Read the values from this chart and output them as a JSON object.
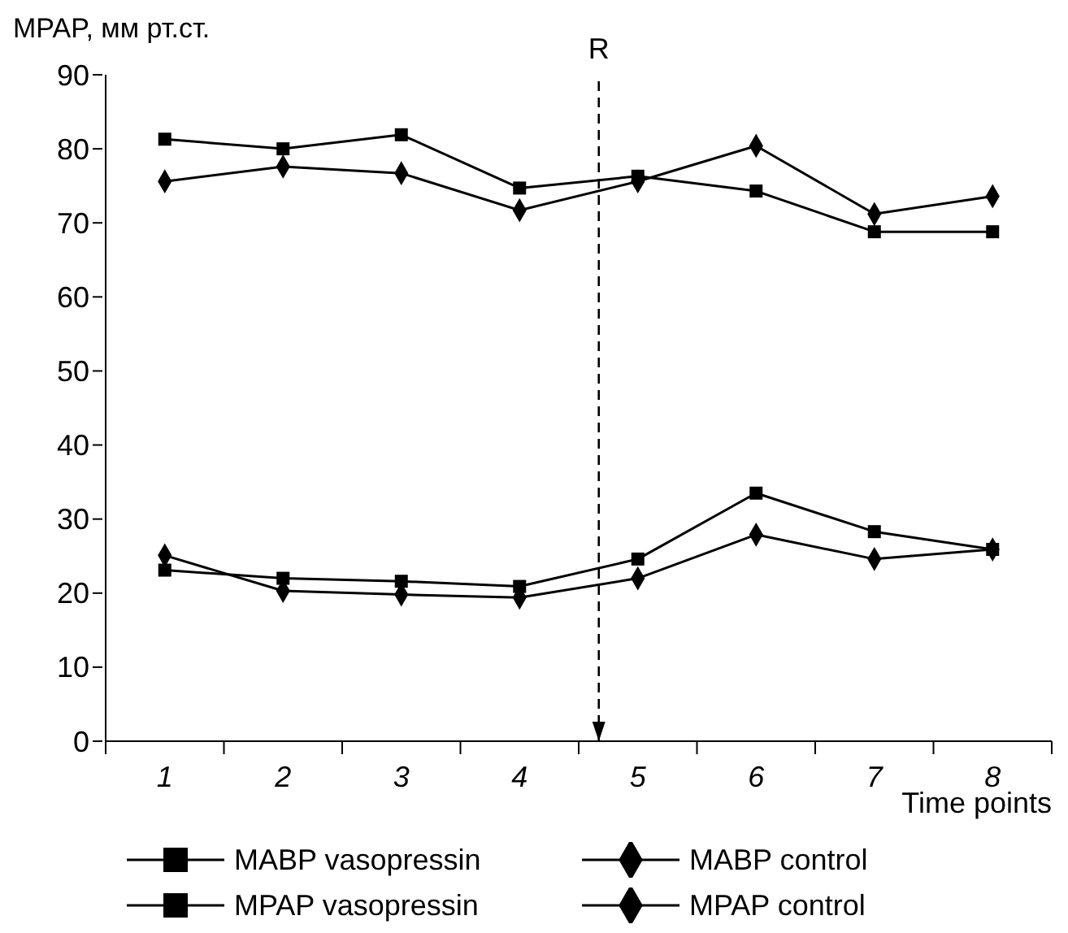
{
  "chart_data": {
    "type": "line",
    "ylabel": "MPAP, мм рт.ст.",
    "xlabel": "Time points",
    "x": [
      1,
      2,
      3,
      4,
      5,
      6,
      7,
      8
    ],
    "xlim": [
      0.5,
      8.5
    ],
    "xticks": [
      {
        "value": 0.5,
        "label": null
      },
      {
        "value": 1,
        "label": "1"
      },
      {
        "value": 1.5,
        "label": null
      },
      {
        "value": 2,
        "label": "2"
      },
      {
        "value": 2.5,
        "label": null
      },
      {
        "value": 3,
        "label": "3"
      },
      {
        "value": 3.5,
        "label": null
      },
      {
        "value": 4,
        "label": "4"
      },
      {
        "value": 4.5,
        "label": null
      },
      {
        "value": 5,
        "label": "5"
      },
      {
        "value": 5.5,
        "label": null
      },
      {
        "value": 6,
        "label": "6"
      },
      {
        "value": 6.5,
        "label": null
      },
      {
        "value": 7,
        "label": "7"
      },
      {
        "value": 7.5,
        "label": null
      },
      {
        "value": 8,
        "label": "8"
      },
      {
        "value": 8.5,
        "label": null
      }
    ],
    "ylim": [
      0,
      90
    ],
    "yticks": [
      0,
      10,
      20,
      30,
      40,
      50,
      60,
      70,
      80,
      90
    ],
    "grid": false,
    "legend": "bottom",
    "line_style": "solid",
    "ref_lines": [
      {
        "axis": "x",
        "value": 4.67,
        "label": "R",
        "line_style": "dashed",
        "color": "#000000"
      }
    ],
    "series": [
      {
        "name": "MABP vasopressin",
        "color": "#000000",
        "marker": "square",
        "values": [
          81.3,
          80.0,
          81.9,
          74.7,
          76.3,
          74.3,
          68.8,
          68.8
        ]
      },
      {
        "name": "MABP control",
        "color": "#000000",
        "marker": "diamond",
        "values": [
          75.6,
          77.6,
          76.7,
          71.7,
          75.6,
          80.4,
          71.2,
          73.6
        ]
      },
      {
        "name": "MPAP vasopressin",
        "color": "#000000",
        "marker": "square",
        "values": [
          23.1,
          22.0,
          21.6,
          20.9,
          24.6,
          33.5,
          28.3,
          25.9
        ]
      },
      {
        "name": "MPAP control",
        "color": "#000000",
        "marker": "diamond",
        "values": [
          25.1,
          20.3,
          19.8,
          19.4,
          22.0,
          27.9,
          24.6,
          25.9
        ]
      }
    ]
  }
}
